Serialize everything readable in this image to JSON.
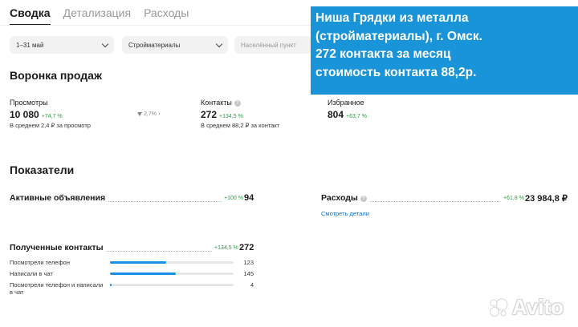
{
  "tabs": [
    "Сводка",
    "Детализация",
    "Расходы"
  ],
  "filters": {
    "period": "1–31 май",
    "category": "Стройматериалы",
    "city_placeholder": "Населённый пункт"
  },
  "funnel": {
    "title": "Воронка продаж",
    "views": {
      "label": "Просмотры",
      "value": "10 080",
      "delta": "+74,7 %",
      "sub": "В среднем 2,4 ₽ за просмотр"
    },
    "conversion": "2,7%",
    "contacts": {
      "label": "Контакты",
      "value": "272",
      "delta": "+134,5 %",
      "sub": "В среднем 88,2 ₽ за контакт"
    },
    "favorites": {
      "label": "Избранное",
      "value": "804",
      "delta": "+63,7 %"
    }
  },
  "indicators": {
    "title": "Показатели",
    "active_ads": {
      "label": "Активные объявления",
      "delta": "+100 %",
      "value": "94"
    },
    "expenses": {
      "label": "Расходы",
      "delta": "+61,8 %",
      "value": "23 984,8 ₽",
      "link": "Смотреть детали"
    },
    "received": {
      "label": "Полученные контакты",
      "delta": "+134,5 %",
      "value": "272",
      "rows": [
        {
          "label": "Посмотрели телефон",
          "value": "123",
          "fraction": 0.452
        },
        {
          "label": "Написали в чат",
          "value": "145",
          "fraction": 0.533
        },
        {
          "label": "Посмотрели телефон и написали в чат",
          "value": "4",
          "fraction": 0.015
        }
      ]
    }
  },
  "banner": {
    "lines": [
      "Ниша Грядки из металла",
      "(стройматериалы), г. Омск.",
      "272 контакта за месяц",
      "стоимость контакта 88,2р."
    ]
  },
  "watermark": {
    "text": "Avito"
  },
  "colors": {
    "accent": "#1a94d8",
    "positive": "#2e9b46",
    "bar": "#1a8fe6",
    "link": "#0a6ecf"
  }
}
